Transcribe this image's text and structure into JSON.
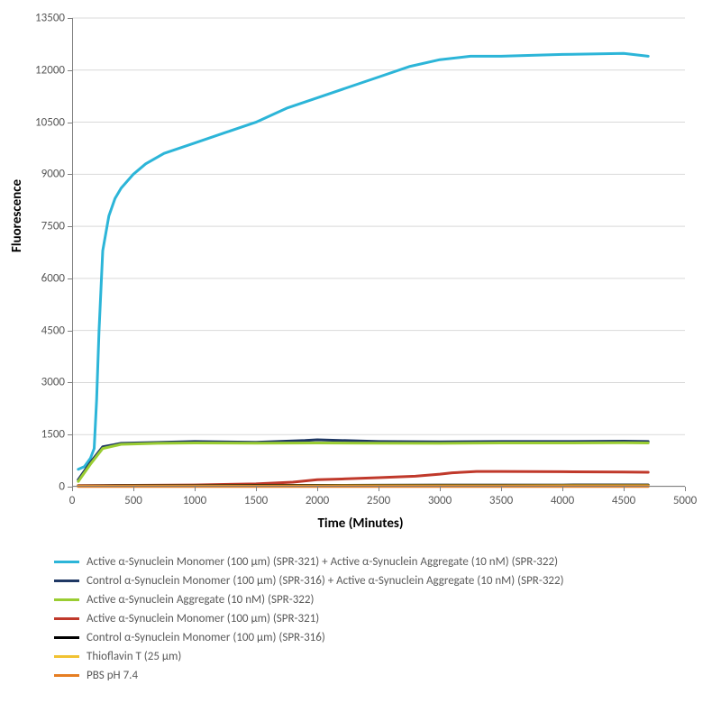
{
  "chart": {
    "type": "line",
    "background_color": "#ffffff",
    "grid_color": "#d9d9d9",
    "axis_color": "#808080",
    "tick_font_size": 13,
    "tick_color": "#595959",
    "ylabel": "Fluorescence",
    "xlabel": "Time (Minutes)",
    "label_fontsize": 15,
    "label_fontweight": "bold",
    "xlim": [
      0,
      5000
    ],
    "ylim": [
      0,
      13500
    ],
    "xtick_step": 500,
    "ytick_step": 1500,
    "line_width": 3,
    "legend_font_size": 13,
    "legend_text_color": "#595959",
    "series": [
      {
        "name": "Active α-Synuclein Monomer (100 μm) (SPR-321) + Active α-Synuclein Aggregate (10 nM) (SPR-322)",
        "color": "#2cb5d8",
        "x": [
          50,
          100,
          150,
          180,
          200,
          220,
          250,
          300,
          350,
          400,
          500,
          600,
          750,
          1000,
          1250,
          1500,
          1750,
          2000,
          2250,
          2500,
          2750,
          3000,
          3250,
          3500,
          4000,
          4500,
          4700
        ],
        "y": [
          500,
          580,
          820,
          1100,
          2500,
          4500,
          6800,
          7800,
          8300,
          8600,
          9000,
          9300,
          9600,
          9900,
          10200,
          10500,
          10900,
          11200,
          11500,
          11800,
          12100,
          12300,
          12400,
          12400,
          12450,
          12480,
          12400
        ]
      },
      {
        "name": "Control α-Synuclein Monomer (100 μm) (SPR-316) + Active α-Synuclein Aggregate (10 nM) (SPR-322)",
        "color": "#1f3864",
        "x": [
          50,
          150,
          250,
          400,
          700,
          1000,
          1500,
          1900,
          2000,
          2500,
          3000,
          3500,
          4000,
          4500,
          4700
        ],
        "y": [
          200,
          700,
          1150,
          1250,
          1275,
          1300,
          1280,
          1330,
          1350,
          1300,
          1290,
          1300,
          1300,
          1310,
          1300
        ]
      },
      {
        "name": "Active α-Synuclein Aggregate (10 nM) (SPR-322)",
        "color": "#9acd32",
        "x": [
          50,
          150,
          250,
          400,
          700,
          1000,
          1500,
          2000,
          2500,
          3000,
          3500,
          4000,
          4500,
          4700
        ],
        "y": [
          150,
          650,
          1100,
          1220,
          1250,
          1260,
          1255,
          1260,
          1255,
          1250,
          1260,
          1260,
          1265,
          1260
        ]
      },
      {
        "name": "Active α-Synuclein Monomer (100 μm) (SPR-321)",
        "color": "#c0392b",
        "x": [
          50,
          500,
          1000,
          1500,
          1800,
          2000,
          2200,
          2500,
          2800,
          3000,
          3100,
          3300,
          3500,
          4000,
          4500,
          4700
        ],
        "y": [
          30,
          40,
          50,
          80,
          130,
          200,
          220,
          260,
          300,
          360,
          400,
          440,
          440,
          430,
          420,
          415
        ]
      },
      {
        "name": "Control α-Synuclein Monomer (100 μm) (SPR-316)",
        "color": "#000000",
        "x": [
          50,
          500,
          1000,
          1500,
          2000,
          2500,
          3000,
          3500,
          4000,
          4500,
          4700
        ],
        "y": [
          20,
          30,
          35,
          38,
          40,
          42,
          44,
          46,
          48,
          50,
          50
        ]
      },
      {
        "name": "Thioflavin T (25 μm)",
        "color": "#f1c232",
        "x": [
          50,
          500,
          1000,
          1500,
          2000,
          2500,
          3000,
          3500,
          4000,
          4500,
          4700
        ],
        "y": [
          15,
          18,
          20,
          22,
          24,
          25,
          26,
          27,
          28,
          28,
          28
        ]
      },
      {
        "name": "PBS pH 7.4",
        "color": "#e67e22",
        "x": [
          50,
          500,
          1000,
          1500,
          2000,
          2500,
          3000,
          3500,
          4000,
          4500,
          4700
        ],
        "y": [
          5,
          6,
          6,
          7,
          7,
          8,
          8,
          8,
          9,
          9,
          9
        ]
      }
    ]
  }
}
